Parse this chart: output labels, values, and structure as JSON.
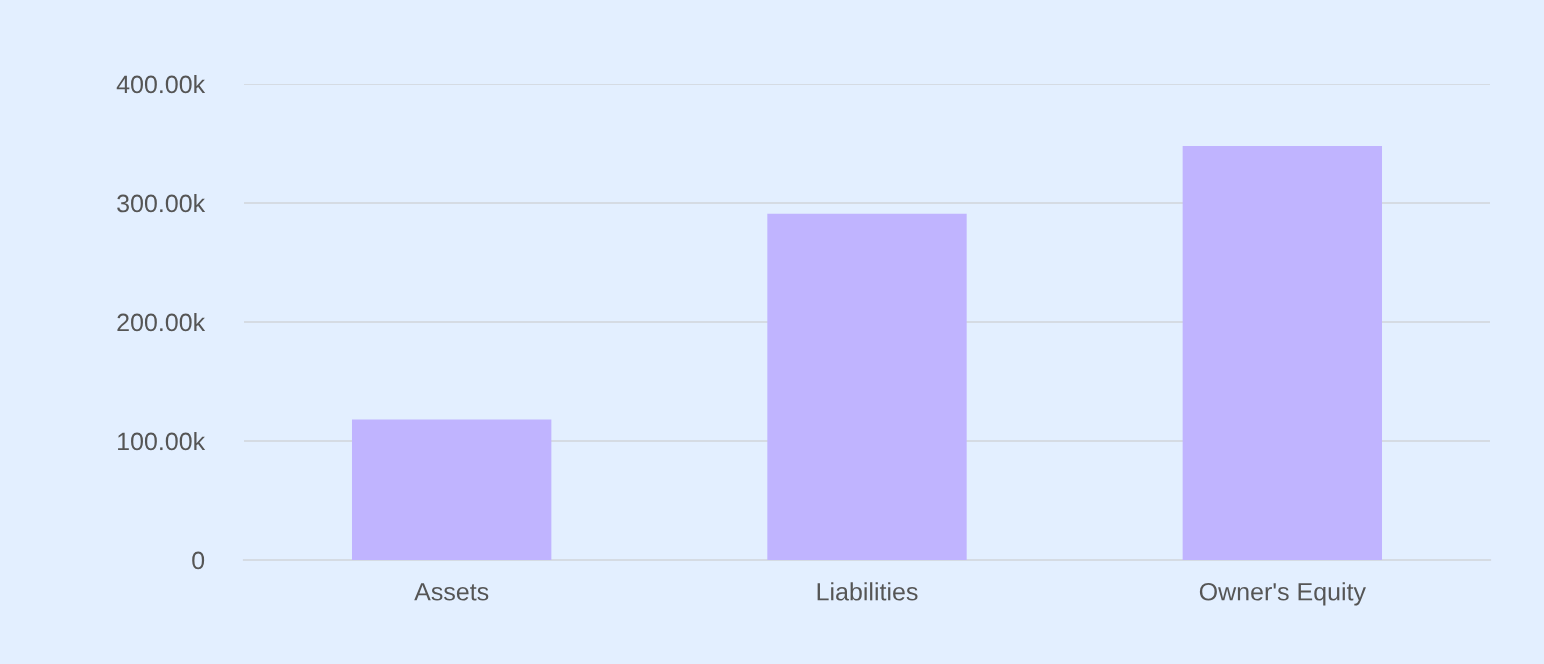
{
  "chart_data": {
    "type": "bar",
    "categories": [
      "Assets",
      "Liabilities",
      "Owner's Equity"
    ],
    "values": [
      118000,
      291000,
      348000
    ],
    "color": "#c0b4ff",
    "ylim": [
      0,
      400000
    ],
    "yticks": [
      0,
      {
        "value": 100000,
        "label": "100.00k"
      },
      {
        "value": 200000,
        "label": "200.00k"
      },
      {
        "value": 300000,
        "label": "300.00k"
      },
      {
        "value": 400000,
        "label": "400.00k"
      }
    ],
    "grid": "y"
  }
}
